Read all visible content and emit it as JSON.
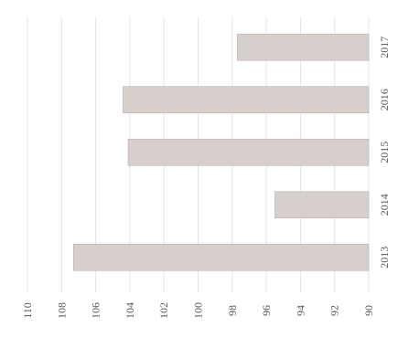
{
  "chart_data": {
    "type": "bar",
    "orientation": "horizontal",
    "categories": [
      "2013",
      "2014",
      "2015",
      "2016",
      "2017"
    ],
    "values": [
      107.3,
      95.5,
      104.1,
      104.4,
      97.7
    ],
    "xlim": [
      90,
      110
    ],
    "x_ticks": [
      110,
      108,
      106,
      104,
      102,
      100,
      98,
      96,
      94,
      92,
      90
    ],
    "grid": true,
    "colors": {
      "bar": "#d6cfcb",
      "grid": "#e6e6e6",
      "text": "#555555"
    }
  }
}
